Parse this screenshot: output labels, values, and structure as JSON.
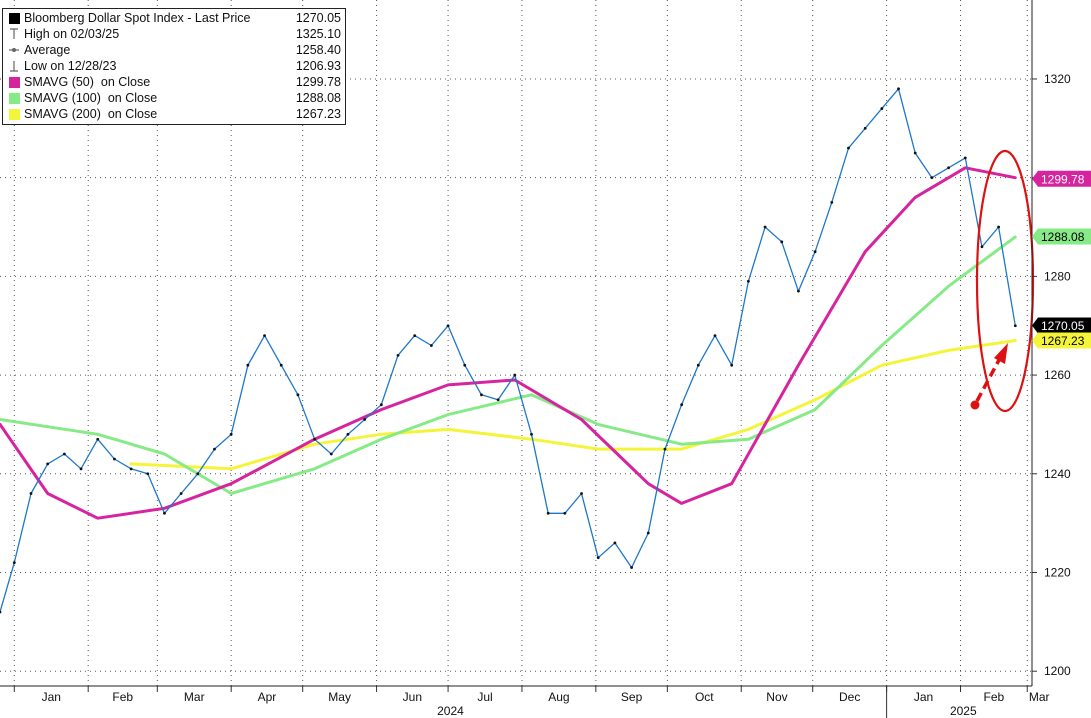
{
  "legend": [
    {
      "label": "Bloomberg Dollar Spot Index - Last Price",
      "value": "1270.05",
      "symbol": "square",
      "color": "#000000"
    },
    {
      "label": "High on 02/03/25",
      "value": "1325.10",
      "symbol": "high-marker-icon",
      "color": "#777777"
    },
    {
      "label": "Average",
      "value": "1258.40",
      "symbol": "average-marker-icon",
      "color": "#777777"
    },
    {
      "label": "Low on 12/28/23",
      "value": "1206.93",
      "symbol": "low-marker-icon",
      "color": "#777777"
    },
    {
      "label": "SMAVG (50)  on Close",
      "value": "1299.78",
      "symbol": "square",
      "color": "#d6249f"
    },
    {
      "label": "SMAVG (100)  on Close",
      "value": "1288.08",
      "symbol": "square",
      "color": "#86ea86"
    },
    {
      "label": "SMAVG (200)  on Close",
      "value": "1267.23",
      "symbol": "square",
      "color": "#f4f43a"
    }
  ],
  "tags": {
    "sma50": {
      "text": "1299.78",
      "color": "#d6249f",
      "text_color": "#ffffff"
    },
    "sma100": {
      "text": "1288.08",
      "color": "#86ea86",
      "text_color": "#000000"
    },
    "last": {
      "text": "1270.05",
      "color": "#000000",
      "text_color": "#ffffff"
    },
    "sma200": {
      "text": "1267.23",
      "color": "#f4f43a",
      "text_color": "#000000"
    }
  },
  "chart_data": {
    "type": "line",
    "title": "Bloomberg Dollar Spot Index - Last Price",
    "ylim": [
      1197,
      1336
    ],
    "y_ticks": [
      1200,
      1220,
      1240,
      1260,
      1280,
      1300,
      1320
    ],
    "y_tick_labels": [
      "1200",
      "1220",
      "1240",
      "1260",
      "1280",
      "",
      "1320"
    ],
    "x_months": [
      "Jan",
      "Feb",
      "Mar",
      "Apr",
      "May",
      "Jun",
      "Jul",
      "Aug",
      "Sep",
      "Oct",
      "Nov",
      "Dec",
      "Jan",
      "Feb",
      "Mar"
    ],
    "x_years": [
      "2024",
      "2025"
    ],
    "grid": true,
    "legend_position": "top-left",
    "x_range": [
      "2023-12-26",
      "2025-03-03"
    ],
    "series": [
      {
        "name": "Bloomberg Dollar Spot Index - Last Price",
        "color": "#1f77c9",
        "x": [
          "2023-12-26",
          "2024-01-01",
          "2024-01-08",
          "2024-01-15",
          "2024-01-22",
          "2024-01-29",
          "2024-02-05",
          "2024-02-12",
          "2024-02-19",
          "2024-02-26",
          "2024-03-04",
          "2024-03-11",
          "2024-03-18",
          "2024-03-25",
          "2024-04-01",
          "2024-04-08",
          "2024-04-15",
          "2024-04-22",
          "2024-04-29",
          "2024-05-06",
          "2024-05-13",
          "2024-05-20",
          "2024-05-27",
          "2024-06-03",
          "2024-06-10",
          "2024-06-17",
          "2024-06-24",
          "2024-07-01",
          "2024-07-08",
          "2024-07-15",
          "2024-07-22",
          "2024-07-29",
          "2024-08-05",
          "2024-08-12",
          "2024-08-19",
          "2024-08-26",
          "2024-09-02",
          "2024-09-09",
          "2024-09-16",
          "2024-09-23",
          "2024-09-30",
          "2024-10-07",
          "2024-10-14",
          "2024-10-21",
          "2024-10-28",
          "2024-11-04",
          "2024-11-11",
          "2024-11-18",
          "2024-11-25",
          "2024-12-02",
          "2024-12-09",
          "2024-12-16",
          "2024-12-23",
          "2024-12-30",
          "2025-01-06",
          "2025-01-13",
          "2025-01-20",
          "2025-01-27",
          "2025-02-03",
          "2025-02-10",
          "2025-02-17",
          "2025-02-24"
        ],
        "values": [
          1212,
          1222,
          1236,
          1242,
          1244,
          1241,
          1247,
          1243,
          1241,
          1240,
          1232,
          1236,
          1240,
          1245,
          1248,
          1262,
          1268,
          1262,
          1256,
          1247,
          1244,
          1248,
          1251,
          1254,
          1264,
          1268,
          1266,
          1270,
          1262,
          1256,
          1255,
          1260,
          1248,
          1232,
          1232,
          1236,
          1223,
          1226,
          1221,
          1228,
          1245,
          1254,
          1262,
          1268,
          1262,
          1279,
          1290,
          1287,
          1277,
          1285,
          1295,
          1306,
          1310,
          1314,
          1318,
          1305,
          1300,
          1302,
          1304,
          1286,
          1290,
          1270
        ]
      },
      {
        "name": "SMAVG (50)  on Close",
        "color": "#d6249f",
        "x": [
          "2023-12-26",
          "2024-01-15",
          "2024-02-05",
          "2024-03-04",
          "2024-04-01",
          "2024-05-06",
          "2024-06-03",
          "2024-07-01",
          "2024-07-29",
          "2024-08-26",
          "2024-09-23",
          "2024-10-07",
          "2024-10-28",
          "2024-11-25",
          "2024-12-23",
          "2025-01-13",
          "2025-02-03",
          "2025-02-24"
        ],
        "values": [
          1250,
          1236,
          1231,
          1233,
          1238,
          1247,
          1253,
          1258,
          1259,
          1251,
          1238,
          1234,
          1238,
          1262,
          1285,
          1296,
          1302,
          1300
        ]
      },
      {
        "name": "SMAVG (100)  on Close",
        "color": "#86ea86",
        "x": [
          "2023-12-26",
          "2024-02-05",
          "2024-03-04",
          "2024-04-01",
          "2024-05-06",
          "2024-06-03",
          "2024-07-01",
          "2024-08-05",
          "2024-09-02",
          "2024-10-07",
          "2024-11-04",
          "2024-12-02",
          "2024-12-30",
          "2025-01-27",
          "2025-02-24"
        ],
        "values": [
          1251,
          1248,
          1244,
          1236,
          1241,
          1247,
          1252,
          1256,
          1250,
          1246,
          1247,
          1253,
          1266,
          1278,
          1288
        ]
      },
      {
        "name": "SMAVG (200)  on Close",
        "color": "#f4f43a",
        "x": [
          "2024-02-19",
          "2024-04-01",
          "2024-05-06",
          "2024-06-03",
          "2024-07-01",
          "2024-08-05",
          "2024-09-02",
          "2024-10-07",
          "2024-11-04",
          "2024-12-02",
          "2024-12-30",
          "2025-01-27",
          "2025-02-24"
        ],
        "values": [
          1242,
          1241,
          1246,
          1248,
          1249,
          1247,
          1245,
          1245,
          1249,
          1255,
          1262,
          1265,
          1267
        ]
      }
    ]
  }
}
